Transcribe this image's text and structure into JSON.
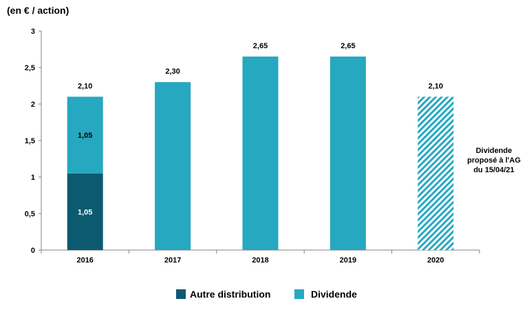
{
  "chart_data": {
    "type": "bar",
    "stacked": true,
    "unit_label": "(en € / action)",
    "categories": [
      "2016",
      "2017",
      "2018",
      "2019",
      "2020"
    ],
    "series": [
      {
        "name": "Autre distribution",
        "color": "#0c5a70",
        "values": [
          1.05,
          0,
          0,
          0,
          0
        ]
      },
      {
        "name": "Dividende",
        "color": "#26a8c0",
        "values": [
          1.05,
          2.3,
          2.65,
          2.65,
          2.1
        ]
      }
    ],
    "segment_labels": {
      "2016": [
        "1,05",
        "1,05"
      ]
    },
    "totals": [
      "2,10",
      "2,30",
      "2,65",
      "2,65",
      "2,10"
    ],
    "proposed_category": "2020",
    "proposed_total_color": "#1d6f87",
    "annotation": [
      "Dividende",
      "proposé à l'AG",
      "du 15/04/21"
    ],
    "y_ticks": [
      "0",
      "0,5",
      "1",
      "1,5",
      "2",
      "2,5",
      "3"
    ],
    "ylim": [
      0,
      3
    ],
    "legend_position": "bottom-center"
  }
}
